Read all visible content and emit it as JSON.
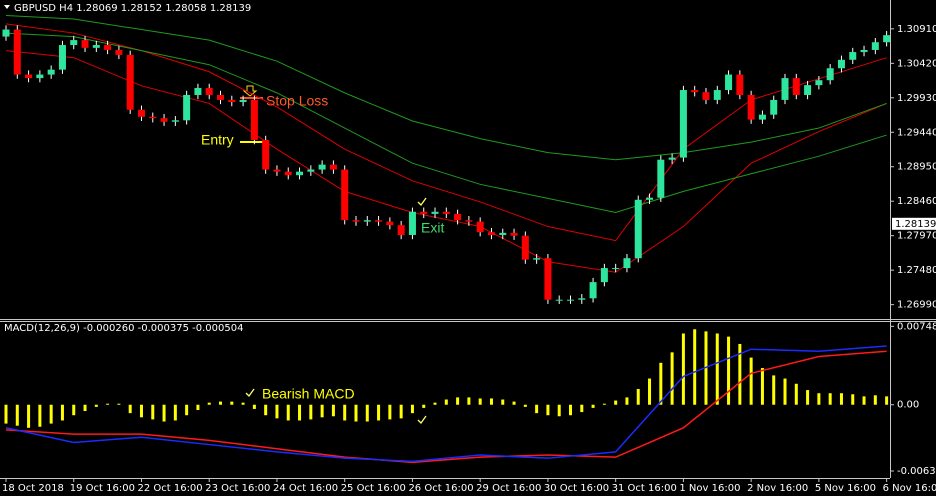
{
  "chart_data": [
    {
      "type": "candlestick",
      "title": "GBPUSD H4  1.28069 1.28152 1.28058 1.28139",
      "colors": {
        "up": "#2ee59d",
        "down": "#ff0000",
        "wick": "#ffffff"
      },
      "open": [
        1.308,
        1.309,
        1.3026,
        1.3021,
        1.3026,
        1.3033,
        1.3068,
        1.3075,
        1.3064,
        1.3068,
        1.3061,
        1.3054,
        1.2976,
        1.2966,
        1.2964,
        1.2959,
        1.2961,
        1.2997,
        1.3007,
        1.2997,
        1.299,
        1.2987,
        1.299,
        1.2933,
        1.2891,
        1.2888,
        1.2883,
        1.2888,
        1.2891,
        1.2898,
        1.2891,
        1.2819,
        1.2817,
        1.2819,
        1.2817,
        1.2812,
        1.2798,
        1.2831,
        1.2828,
        1.2831,
        1.2828,
        1.2819,
        1.2817,
        1.2802,
        1.2798,
        1.2801,
        1.2797,
        1.2763,
        1.2765,
        1.2706,
        1.2706,
        1.2706,
        1.2708,
        1.2731,
        1.2751,
        1.2751,
        1.2765,
        1.2848,
        1.2851,
        1.2905,
        1.2908,
        1.3004,
        1.3001,
        1.299,
        1.3004,
        1.3026,
        1.2997,
        1.2962,
        1.2969,
        1.299,
        1.3021,
        1.2997,
        1.3011,
        1.3018,
        1.3035,
        1.3047,
        1.3058,
        1.3061,
        1.3072
      ],
      "high": [
        1.3096,
        1.3096,
        1.3032,
        1.3032,
        1.3039,
        1.3074,
        1.3081,
        1.3081,
        1.3074,
        1.3074,
        1.3067,
        1.306,
        1.2982,
        1.2972,
        1.297,
        1.2967,
        1.3003,
        1.3013,
        1.3013,
        1.3003,
        1.2996,
        1.2996,
        1.2996,
        1.2939,
        1.2897,
        1.2894,
        1.2894,
        1.2897,
        1.2904,
        1.2904,
        1.2897,
        1.2825,
        1.2825,
        1.2825,
        1.2823,
        1.2818,
        1.2837,
        1.2837,
        1.2837,
        1.2837,
        1.2834,
        1.2825,
        1.2823,
        1.2808,
        1.2807,
        1.2807,
        1.2803,
        1.2771,
        1.2771,
        1.2712,
        1.2712,
        1.2714,
        1.2737,
        1.2757,
        1.2757,
        1.2771,
        1.2854,
        1.2857,
        1.2911,
        1.2914,
        1.301,
        1.301,
        1.3007,
        1.301,
        1.3032,
        1.3032,
        1.3003,
        1.2975,
        1.2996,
        1.3027,
        1.3027,
        1.3017,
        1.3024,
        1.3041,
        1.3053,
        1.3064,
        1.3067,
        1.3078,
        1.3088
      ],
      "low": [
        1.3074,
        1.302,
        1.3015,
        1.3015,
        1.302,
        1.3027,
        1.3062,
        1.3058,
        1.3058,
        1.3055,
        1.3048,
        1.297,
        1.296,
        1.2958,
        1.2953,
        1.2953,
        1.2955,
        1.2991,
        1.2991,
        1.2984,
        1.2981,
        1.2981,
        1.2927,
        1.2885,
        1.2882,
        1.2877,
        1.2877,
        1.2882,
        1.2885,
        1.2885,
        1.2813,
        1.2811,
        1.2811,
        1.2811,
        1.2806,
        1.2792,
        1.2792,
        1.2822,
        1.2822,
        1.2822,
        1.2813,
        1.2811,
        1.2796,
        1.2792,
        1.2792,
        1.2791,
        1.2757,
        1.2757,
        1.27,
        1.27,
        1.27,
        1.27,
        1.2702,
        1.2725,
        1.2745,
        1.2745,
        1.2759,
        1.2842,
        1.2845,
        1.2899,
        1.2902,
        1.2995,
        1.2984,
        1.2984,
        1.2998,
        1.2991,
        1.2956,
        1.2956,
        1.2963,
        1.2984,
        1.2991,
        1.2991,
        1.3005,
        1.3012,
        1.3029,
        1.3041,
        1.3052,
        1.3055,
        1.3066
      ],
      "close": [
        1.309,
        1.3026,
        1.3021,
        1.3026,
        1.3033,
        1.3068,
        1.3075,
        1.3064,
        1.3068,
        1.3061,
        1.3054,
        1.2976,
        1.2966,
        1.2964,
        1.2959,
        1.2961,
        1.2997,
        1.3007,
        1.2997,
        1.299,
        1.2987,
        1.299,
        1.2933,
        1.2891,
        1.2888,
        1.2883,
        1.2888,
        1.2891,
        1.2898,
        1.2891,
        1.2819,
        1.2817,
        1.2819,
        1.2817,
        1.2812,
        1.2798,
        1.2831,
        1.2828,
        1.2831,
        1.2828,
        1.2819,
        1.2817,
        1.2802,
        1.2798,
        1.2801,
        1.2797,
        1.2763,
        1.2765,
        1.2706,
        1.2706,
        1.2706,
        1.2708,
        1.2731,
        1.2751,
        1.2751,
        1.2765,
        1.2848,
        1.2851,
        1.2905,
        1.2908,
        1.3004,
        1.3001,
        1.299,
        1.3004,
        1.3026,
        1.2997,
        1.2962,
        1.2969,
        1.299,
        1.3021,
        1.2997,
        1.3011,
        1.3018,
        1.3035,
        1.3047,
        1.3058,
        1.3061,
        1.3072,
        1.3082
      ],
      "overlays": [
        {
          "color": "#e00000",
          "x": [
            0,
            6,
            12,
            18,
            24,
            30,
            36,
            42,
            48,
            54,
            60,
            66,
            72,
            78
          ],
          "values": [
            1.3098,
            1.3085,
            1.306,
            1.303,
            1.298,
            1.292,
            1.2875,
            1.2845,
            1.281,
            1.279,
            1.292,
            1.299,
            1.302,
            1.305
          ]
        },
        {
          "color": "#e00000",
          "x": [
            0,
            6,
            12,
            18,
            24,
            30,
            36,
            42,
            48,
            54,
            60,
            66,
            72,
            78
          ],
          "values": [
            1.306,
            1.305,
            1.301,
            1.2985,
            1.292,
            1.286,
            1.283,
            1.281,
            1.276,
            1.2745,
            1.281,
            1.29,
            1.2945,
            1.2985
          ]
        },
        {
          "color": "#1f9a1f",
          "x": [
            0,
            6,
            12,
            18,
            24,
            30,
            36,
            42,
            48,
            54,
            60,
            66,
            72,
            78
          ],
          "values": [
            1.311,
            1.3105,
            1.309,
            1.3075,
            1.3045,
            1.3,
            1.296,
            1.2935,
            1.2915,
            1.2905,
            1.2915,
            1.293,
            1.295,
            1.2985
          ]
        },
        {
          "color": "#1f9a1f",
          "x": [
            0,
            6,
            12,
            18,
            24,
            30,
            36,
            42,
            48,
            54,
            60,
            66,
            72,
            78
          ],
          "values": [
            1.3085,
            1.308,
            1.306,
            1.304,
            1.3,
            1.295,
            1.29,
            1.287,
            1.285,
            1.283,
            1.286,
            1.2885,
            1.291,
            1.294
          ]
        }
      ],
      "ylim": [
        1.268,
        1.3132
      ],
      "yticks": [
        {
          "value": 1.3091,
          "label": "1.30910"
        },
        {
          "value": 1.3042,
          "label": "1.30420"
        },
        {
          "value": 1.2993,
          "label": "1.29930"
        },
        {
          "value": 1.2944,
          "label": "1.29440"
        },
        {
          "value": 1.2895,
          "label": "1.28950"
        },
        {
          "value": 1.2846,
          "label": "1.28460"
        },
        {
          "value": 1.2797,
          "label": "1.27970"
        },
        {
          "value": 1.2748,
          "label": "1.27480"
        },
        {
          "value": 1.2699,
          "label": "1.26990"
        }
      ],
      "price_tag": 1.28139,
      "annotations": [
        "Stop Loss",
        "Entry",
        "Exit"
      ]
    },
    {
      "type": "macd",
      "title": "MACD(12,26,9) -0.000260 -0.000375 -0.000504",
      "categories": [
        "18 Oct 2018",
        null,
        null,
        null,
        null,
        null,
        "19 Oct 16:00",
        null,
        null,
        null,
        null,
        null,
        "22 Oct 16:00",
        null,
        null,
        null,
        null,
        null,
        "23 Oct 16:00",
        null,
        null,
        null,
        null,
        null,
        "24 Oct 16:00",
        null,
        null,
        null,
        null,
        null,
        "25 Oct 16:00",
        null,
        null,
        null,
        null,
        null,
        "26 Oct 16:00",
        null,
        null,
        null,
        null,
        null,
        "29 Oct 16:00",
        null,
        null,
        null,
        null,
        null,
        "30 Oct 16:00",
        null,
        null,
        null,
        null,
        null,
        "31 Oct 16:00",
        null,
        null,
        null,
        null,
        null,
        "1 Nov 16:00",
        null,
        null,
        null,
        null,
        null,
        "2 Nov 16:00",
        null,
        null,
        null,
        null,
        null,
        "5 Nov 16:00",
        null,
        null,
        null,
        null,
        null,
        "6 Nov 16:00"
      ],
      "color": "#ffff00",
      "values": [
        -0.0018,
        -0.002,
        -0.0022,
        -0.0021,
        -0.0018,
        -0.0015,
        -0.001,
        -0.0006,
        -0.0002,
        0.0001,
        0.0001,
        -0.0008,
        -0.0012,
        -0.0014,
        -0.0016,
        -0.0015,
        -0.001,
        -0.0005,
        0.0002,
        0.0003,
        0.0003,
        0.0002,
        -0.0004,
        -0.001,
        -0.0013,
        -0.0015,
        -0.0015,
        -0.0014,
        -0.0012,
        -0.0011,
        -0.0015,
        -0.0016,
        -0.0016,
        -0.0015,
        -0.0014,
        -0.0013,
        -0.0008,
        -0.0003,
        0.0002,
        0.0005,
        0.0007,
        0.0007,
        0.0006,
        0.0006,
        0.0005,
        0.0003,
        -0.0002,
        -0.0008,
        -0.001,
        -0.0011,
        -0.001,
        -0.0007,
        -0.0003,
        0.0001,
        0.0004,
        0.0007,
        0.0015,
        0.0025,
        0.004,
        0.005,
        0.0068,
        0.0072,
        0.007,
        0.0068,
        0.0065,
        0.0058,
        0.0045,
        0.0035,
        0.0028,
        0.0025,
        0.002,
        0.0014,
        0.0011,
        0.0011,
        0.0011,
        0.001,
        0.0008,
        0.0009,
        0.0008
      ],
      "lines": [
        {
          "color": "#ff1a1a",
          "x": [
            0,
            6,
            12,
            18,
            24,
            30,
            36,
            42,
            48,
            54,
            60,
            66,
            72,
            78
          ],
          "values": [
            -0.0024,
            -0.0028,
            -0.0028,
            -0.0034,
            -0.0042,
            -0.005,
            -0.0055,
            -0.005,
            -0.0048,
            -0.005,
            -0.0022,
            0.003,
            0.0046,
            0.0051
          ]
        },
        {
          "color": "#1a2cff",
          "x": [
            0,
            6,
            12,
            18,
            24,
            30,
            36,
            42,
            48,
            54,
            60,
            66,
            72,
            78
          ],
          "values": [
            -0.0022,
            -0.0036,
            -0.0031,
            -0.0038,
            -0.0045,
            -0.0051,
            -0.0054,
            -0.0048,
            -0.0051,
            -0.0045,
            0.0027,
            0.0053,
            0.0051,
            0.0056
          ]
        }
      ],
      "ylim": [
        -0.0068,
        0.0078
      ],
      "yticks": [
        0.007482,
        {
          "value": 0,
          "label": "0.00"
        },
        -0.006323
      ],
      "annotations": [
        "Bearish MACD"
      ]
    }
  ]
}
